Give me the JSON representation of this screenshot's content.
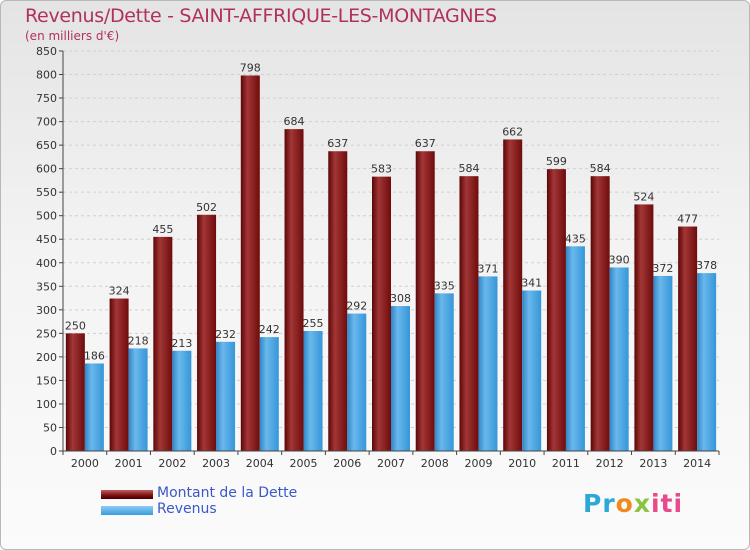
{
  "chart_data": {
    "type": "bar",
    "title": "Revenus/Dette - SAINT-AFFRIQUE-LES-MONTAGNES",
    "subtitle": "(en milliers d'€)",
    "categories": [
      "2000",
      "2001",
      "2002",
      "2003",
      "2004",
      "2005",
      "2006",
      "2007",
      "2008",
      "2009",
      "2010",
      "2011",
      "2012",
      "2013",
      "2014"
    ],
    "series": [
      {
        "name": "Montant de la Dette",
        "values": [
          250,
          324,
          455,
          502,
          798,
          684,
          637,
          583,
          637,
          584,
          662,
          599,
          584,
          524,
          477
        ],
        "color": "#7a1010"
      },
      {
        "name": "Revenus",
        "values": [
          186,
          218,
          213,
          232,
          242,
          255,
          292,
          308,
          335,
          371,
          341,
          435,
          390,
          372,
          378
        ],
        "color": "#3a9ee0"
      }
    ],
    "ylim": [
      0,
      850
    ],
    "yticks": [
      0,
      50,
      100,
      150,
      200,
      250,
      300,
      350,
      400,
      450,
      500,
      550,
      600,
      650,
      700,
      750,
      800,
      850
    ],
    "grid": true,
    "legend": "bottom-left"
  },
  "logo": {
    "part1": "Pr",
    "part2": "o",
    "part3": "x",
    "part4": "iti"
  }
}
